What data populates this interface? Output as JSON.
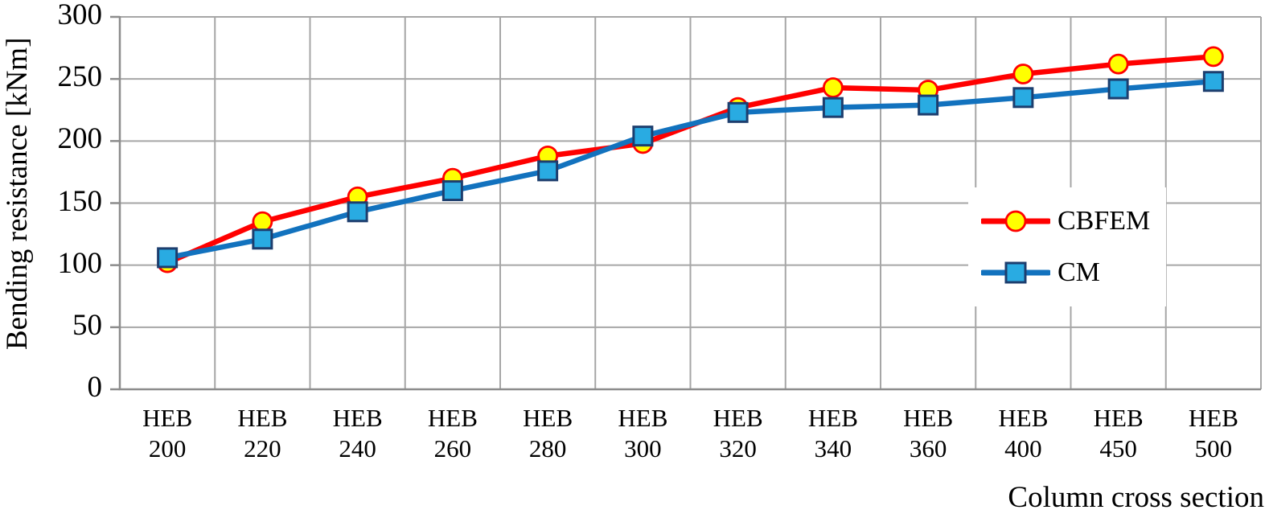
{
  "chart_data": {
    "type": "line",
    "title": "",
    "xlabel": "Column cross section",
    "ylabel": "Bending resistance [kNm]",
    "ylim": [
      0,
      300
    ],
    "yticks": [
      0,
      50,
      100,
      150,
      200,
      250,
      300
    ],
    "grid": true,
    "legend_position": "inside-right",
    "categories": [
      "HEB 200",
      "HEB 220",
      "HEB 240",
      "HEB 260",
      "HEB 280",
      "HEB 300",
      "HEB 320",
      "HEB 340",
      "HEB 360",
      "HEB 400",
      "HEB 450",
      "HEB 500"
    ],
    "series": [
      {
        "name": "CBFEM",
        "marker": "circle",
        "line_color": "#FF0000",
        "marker_fill": "#FFFF00",
        "marker_stroke": "#FF0000",
        "values": [
          102,
          135,
          155,
          170,
          188,
          198,
          227,
          243,
          241,
          254,
          262,
          268
        ]
      },
      {
        "name": "CM",
        "marker": "square",
        "line_color": "#1272BE",
        "marker_fill": "#29ABE2",
        "marker_stroke": "#1D3E6E",
        "values": [
          106,
          121,
          143,
          160,
          176,
          204,
          223,
          227,
          229,
          235,
          242,
          248
        ]
      }
    ],
    "colors": {
      "background": "#FFFFFF",
      "gridline": "#A6A6A6",
      "axis": "#8C8C8C",
      "text": "#000000"
    }
  }
}
